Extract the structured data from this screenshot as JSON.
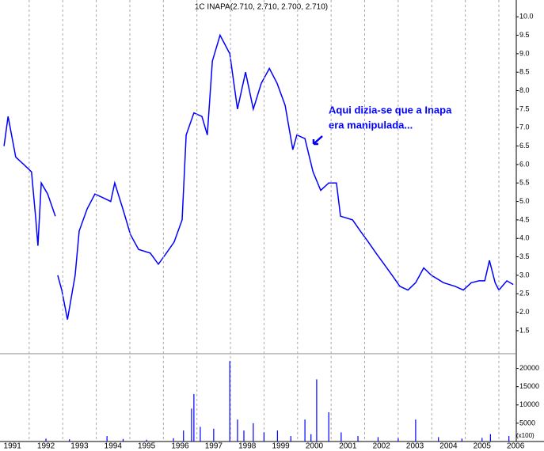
{
  "chart_data": [
    {
      "type": "line",
      "title": "1C INAPA(2.710, 2.710, 2.700, 2.710)",
      "annotations": [
        "Aqui dizia-se que a Inapa",
        "era manipulada..."
      ],
      "xlim": [
        1991.13,
        2006.52
      ],
      "ylim": [
        0.92,
        10.24
      ],
      "yticks": [
        1.5,
        {
          "value": 2,
          "label": "2.0"
        },
        2.5,
        {
          "value": 3,
          "label": "3.0"
        },
        3.5,
        {
          "value": 4,
          "label": "4.0"
        },
        4.5,
        {
          "value": 5,
          "label": "5.0"
        },
        5.5,
        {
          "value": 6,
          "label": "6.0"
        },
        6.5,
        {
          "value": 7,
          "label": "7.0"
        },
        7.5,
        {
          "value": 8,
          "label": "8.0"
        },
        8.5,
        {
          "value": 9,
          "label": "9.0"
        },
        9.5,
        {
          "value": 10,
          "label": "10.0"
        }
      ],
      "series": [
        {
          "name": "INAPA",
          "color": "#0000ff",
          "x": [
            1991.25,
            1991.37,
            1991.6,
            1991.84,
            1992.07,
            1992.2,
            1992.26,
            1992.36,
            1992.55,
            1992.78,
            1992.81,
            1992.85,
            1992.97,
            1993.14,
            1993.37,
            1993.49,
            1993.73,
            1993.96,
            1994.2,
            1994.43,
            1994.55,
            1994.79,
            1995.02,
            1995.26,
            1995.61,
            1995.85,
            1996.09,
            1996.32,
            1996.56,
            1996.68,
            1996.91,
            1997.15,
            1997.31,
            1997.46,
            1997.69,
            1997.98,
            1998.21,
            1998.45,
            1998.68,
            1998.92,
            1999.16,
            1999.39,
            1999.63,
            1999.86,
            1999.98,
            2000.22,
            2000.46,
            2000.69,
            2000.93,
            2001.16,
            2001.28,
            2001.64,
            2001.87,
            2002.11,
            2002.34,
            2002.58,
            2002.82,
            2003.05,
            2003.29,
            2003.52,
            2003.76,
            2003.99,
            2004.35,
            2004.7,
            2004.94,
            2005.18,
            2005.41,
            2005.58,
            2005.72,
            2005.89,
            2006.0,
            2006.24,
            2006.43
          ],
          "values": [
            6.5,
            7.3,
            6.2,
            6.0,
            5.8,
            4.5,
            3.8,
            5.5,
            5.2,
            4.6,
            null,
            3.0,
            2.6,
            1.8,
            3.0,
            4.2,
            4.8,
            5.2,
            5.1,
            5.0,
            5.5,
            4.8,
            4.1,
            3.7,
            3.6,
            3.3,
            3.6,
            3.9,
            4.5,
            6.8,
            7.4,
            7.3,
            6.8,
            8.8,
            9.5,
            9.0,
            7.5,
            8.5,
            7.5,
            8.2,
            8.6,
            8.2,
            7.6,
            6.4,
            6.8,
            6.7,
            5.8,
            5.3,
            5.5,
            5.5,
            4.6,
            4.5,
            4.2,
            3.9,
            3.6,
            3.3,
            3.0,
            2.7,
            2.6,
            2.8,
            3.2,
            3.0,
            2.8,
            2.7,
            2.6,
            2.8,
            2.85,
            2.85,
            3.4,
            2.8,
            2.6,
            2.85,
            2.75
          ]
        }
      ]
    },
    {
      "type": "bar",
      "unit_label": "(x100)",
      "xlim": [
        1991.13,
        2006.52
      ],
      "ylim": [
        0,
        23800
      ],
      "yticks": [
        5000,
        10000,
        15000,
        20000
      ],
      "xticks": [
        1991,
        1992,
        1993,
        1994,
        1995,
        1996,
        1997,
        1998,
        1999,
        2000,
        2001,
        2002,
        2003,
        2004,
        2005,
        2006
      ],
      "color": "#0000ff",
      "x": [
        1992.5,
        1993.2,
        1994.32,
        1994.8,
        1995.5,
        1996.3,
        1996.6,
        1996.84,
        1996.91,
        1997.1,
        1997.5,
        1997.98,
        1998.21,
        1998.4,
        1998.68,
        1999.0,
        1999.4,
        1999.8,
        2000.22,
        2000.4,
        2000.57,
        2000.93,
        2001.3,
        2001.8,
        2002.4,
        2003.0,
        2003.52,
        2004.2,
        2004.9,
        2005.5,
        2005.75,
        2006.3
      ],
      "values": [
        800,
        600,
        1500,
        700,
        500,
        900,
        3000,
        9000,
        13000,
        4000,
        3500,
        22000,
        6000,
        3000,
        5000,
        2500,
        3000,
        1500,
        6000,
        2000,
        17000,
        8000,
        2500,
        1500,
        1200,
        900,
        6000,
        1200,
        800,
        1000,
        2000,
        1500
      ]
    }
  ]
}
